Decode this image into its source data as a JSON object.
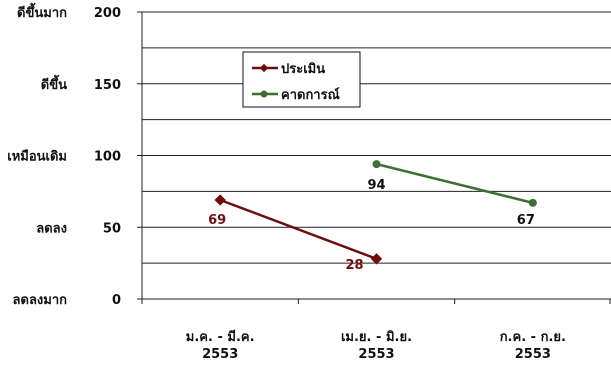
{
  "chart_data": {
    "type": "line",
    "categories": [
      [
        "ม.ค. - มี.ค.",
        "2553"
      ],
      [
        "เม.ย. - มิ.ย.",
        "2553"
      ],
      [
        "ก.ค. - ก.ย.",
        "2553"
      ]
    ],
    "series": [
      {
        "name": "ประเมิน",
        "values": [
          69,
          28,
          null
        ],
        "color": "#6b0f0f",
        "marker": "square"
      },
      {
        "name": "คาดการณ์",
        "values": [
          null,
          94,
          67
        ],
        "color": "#3e6e35",
        "marker": "circle"
      }
    ],
    "ylim": [
      0,
      200
    ],
    "yticks": [
      0,
      50,
      100,
      150,
      200
    ],
    "ylabels_text": [
      {
        "value": 200,
        "label": "ดีขึ้นมาก"
      },
      {
        "value": 150,
        "label": "ดีขึ้น"
      },
      {
        "value": 100,
        "label": "เหมือนเดิม"
      },
      {
        "value": 50,
        "label": "ลดลง"
      },
      {
        "value": 0,
        "label": "ลดลงมาก"
      }
    ],
    "grid": true,
    "legend": "top-center"
  }
}
